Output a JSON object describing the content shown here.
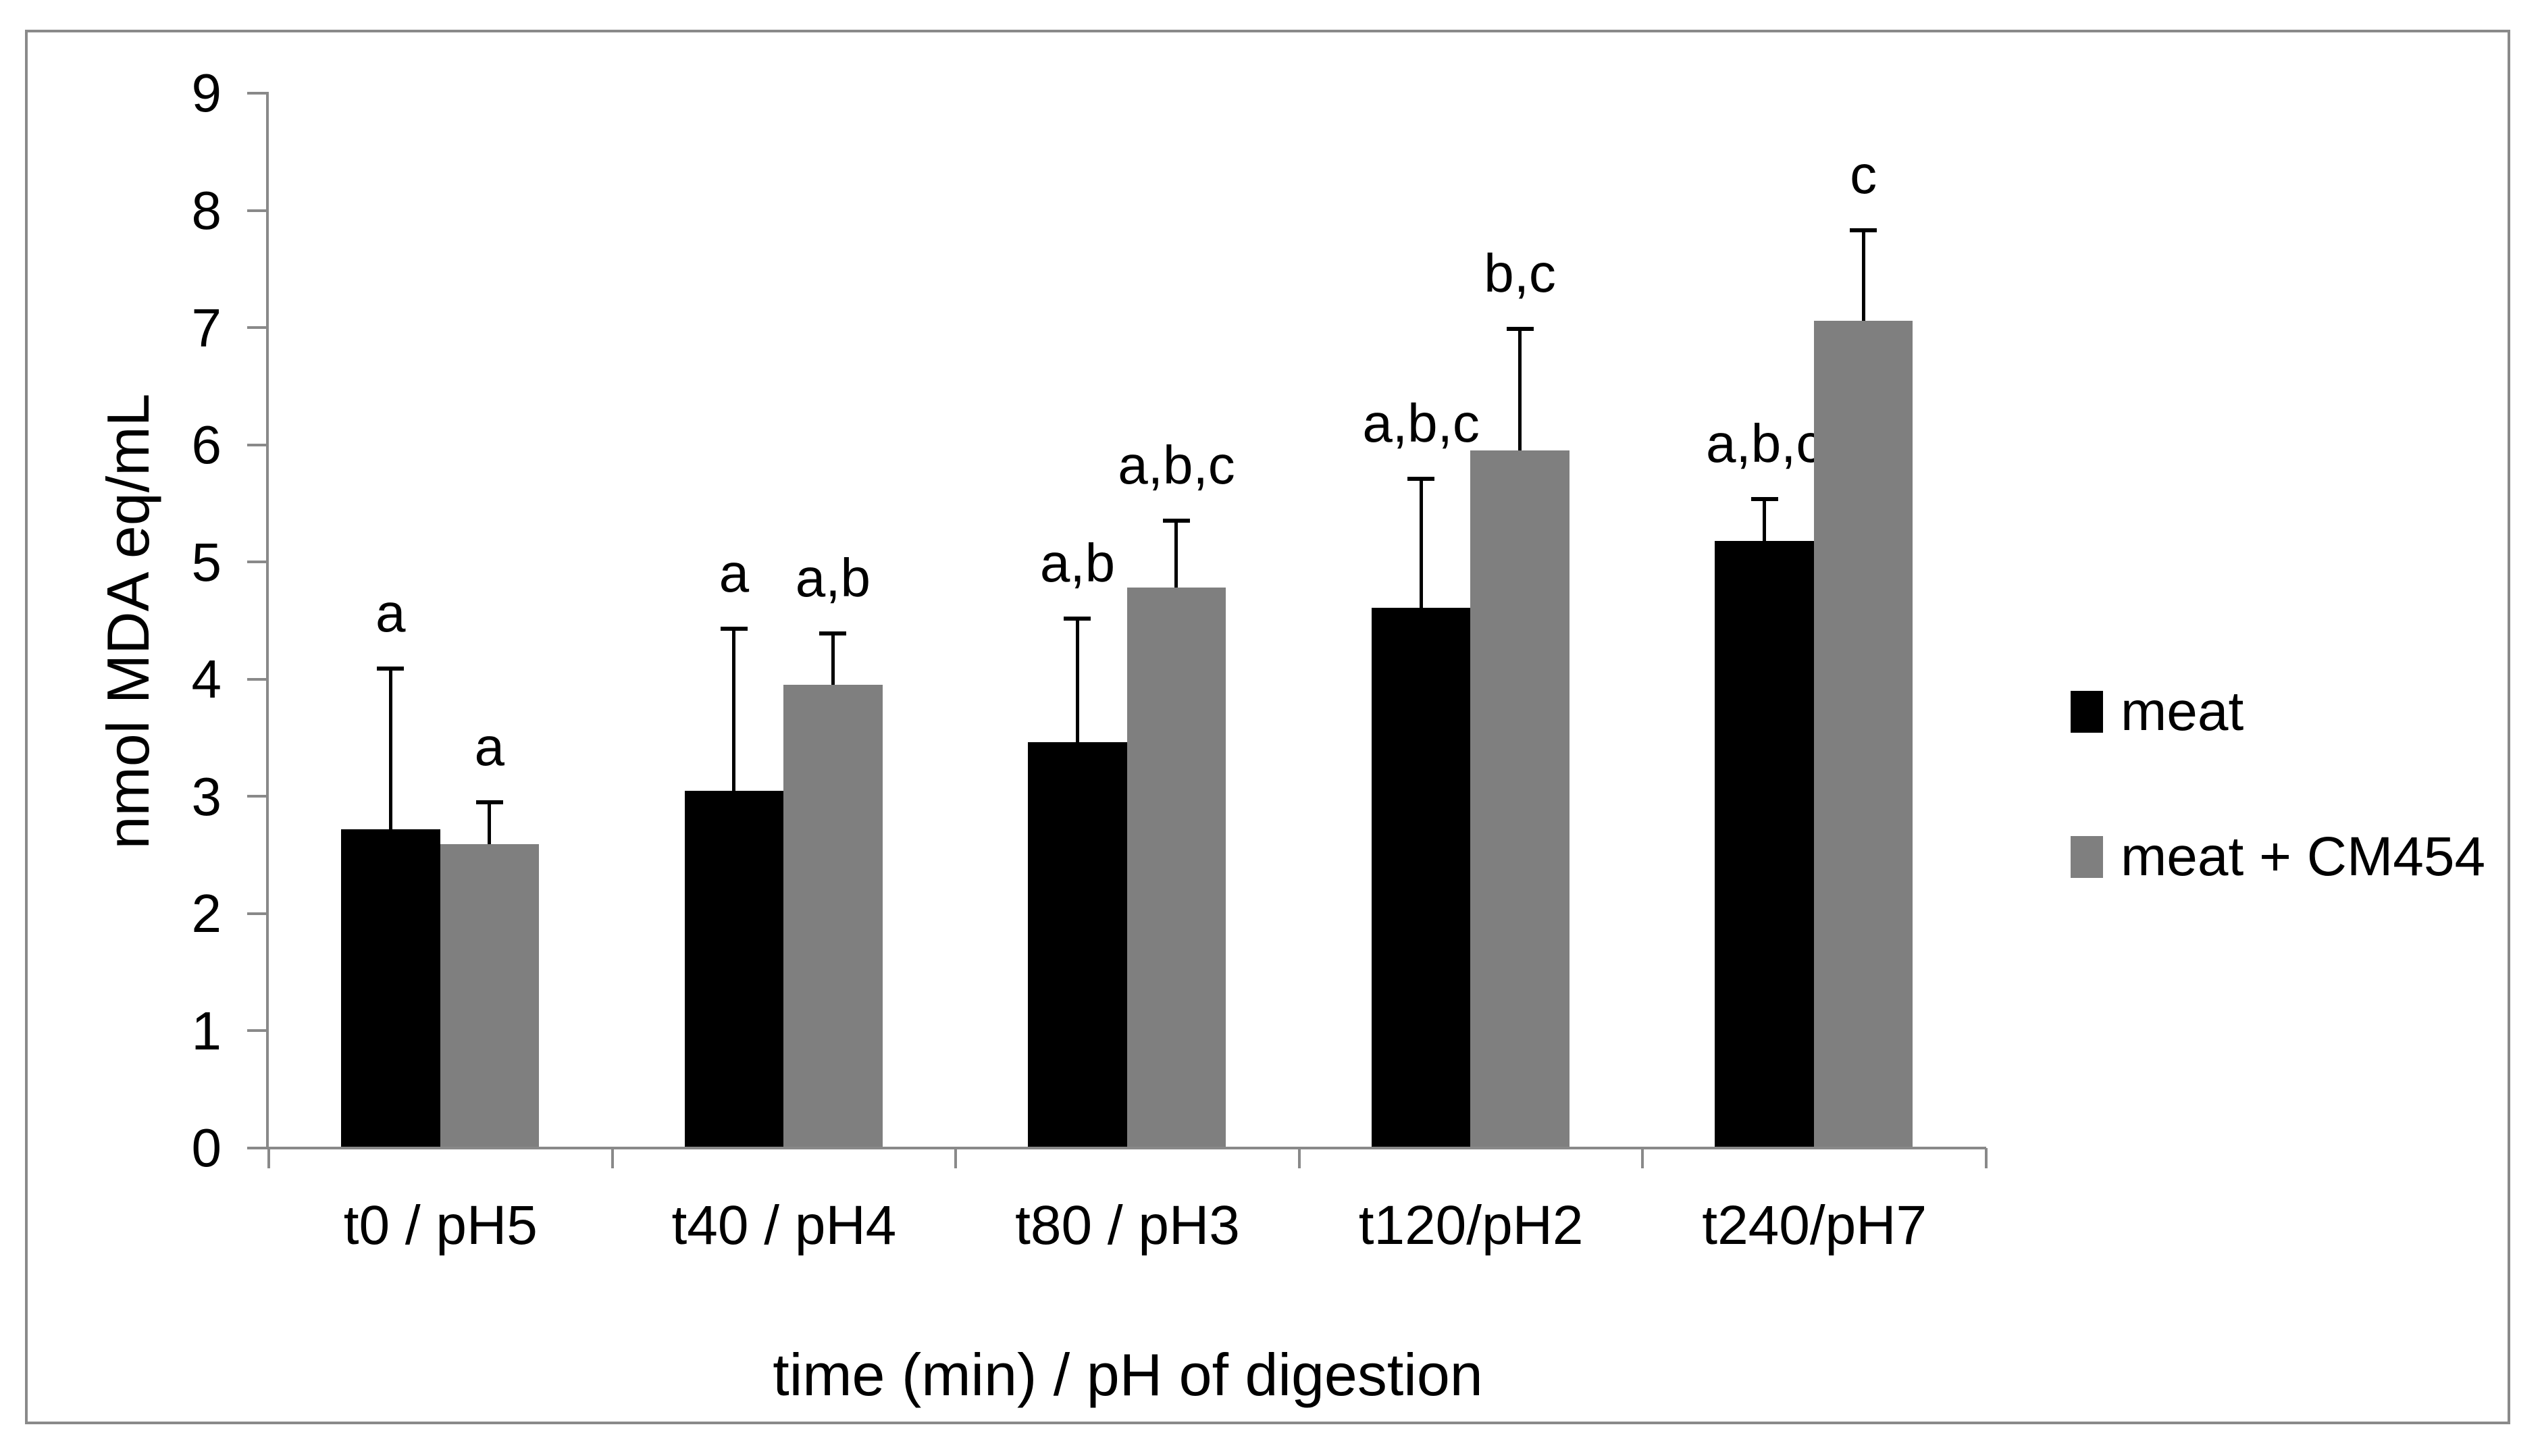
{
  "chart_data": {
    "type": "bar",
    "title": "",
    "xlabel": "time (min) / pH of digestion",
    "ylabel": "nmol MDA eq/mL",
    "categories": [
      "t0 / pH5",
      "t40 / pH4",
      "t80 / pH3",
      "t120/pH2",
      "t240/pH7"
    ],
    "series": [
      {
        "name": "meat",
        "color": "#000000",
        "values": [
          2.72,
          3.05,
          3.46,
          4.61,
          5.18
        ],
        "errors_plus": [
          1.37,
          1.38,
          1.06,
          1.1,
          0.36
        ],
        "sig_letters": [
          "a",
          "a",
          "a,b",
          "a,b,c",
          "a,b,c"
        ]
      },
      {
        "name": "meat + CM454",
        "color": "#7f7f7f",
        "values": [
          2.59,
          3.95,
          4.78,
          5.95,
          7.06
        ],
        "errors_plus": [
          0.36,
          0.44,
          0.57,
          1.04,
          0.77
        ],
        "sig_letters": [
          "a",
          "a,b",
          "a,b,c",
          "b,c",
          "c"
        ]
      }
    ],
    "y_axis": {
      "min": 0,
      "max": 9,
      "tick_step": 1,
      "tick_labels": [
        "0",
        "1",
        "2",
        "3",
        "4",
        "5",
        "6",
        "7",
        "8",
        "9"
      ]
    },
    "x_axis": {
      "category_boundary_ticks": true
    },
    "legend": {
      "position": "right",
      "entries": [
        "meat",
        "meat + CM454"
      ]
    },
    "grid": false,
    "axis_color": "#898989",
    "error_bar_color": "#000000",
    "text_color": "#000000",
    "ylim": [
      0,
      9
    ]
  }
}
